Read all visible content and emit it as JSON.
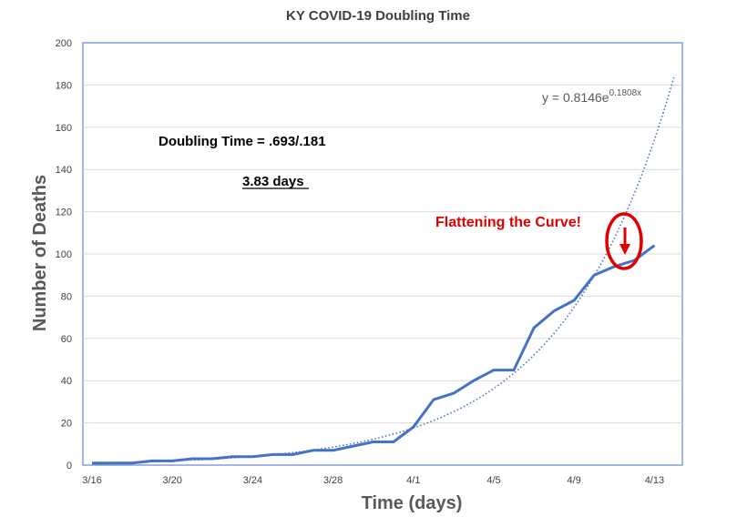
{
  "chart_data": {
    "type": "line",
    "title": "KY COVID-19 Doubling Time",
    "xlabel": "Time (days)",
    "ylabel": "Number of Deaths",
    "ylim": [
      0,
      200
    ],
    "yticks": [
      0,
      20,
      40,
      60,
      80,
      100,
      120,
      140,
      160,
      180,
      200
    ],
    "xticks": [
      "3/16",
      "3/20",
      "3/24",
      "3/28",
      "4/1",
      "4/5",
      "4/9",
      "4/13"
    ],
    "x": [
      "3/16",
      "3/17",
      "3/18",
      "3/19",
      "3/20",
      "3/21",
      "3/22",
      "3/23",
      "3/24",
      "3/25",
      "3/26",
      "3/27",
      "3/28",
      "3/29",
      "3/30",
      "3/31",
      "4/1",
      "4/2",
      "4/3",
      "4/4",
      "4/5",
      "4/6",
      "4/7",
      "4/8",
      "4/9",
      "4/10",
      "4/11",
      "4/12",
      "4/13"
    ],
    "series": [
      {
        "values": [
          1,
          1,
          1,
          2,
          2,
          3,
          3,
          4,
          4,
          5,
          5,
          7,
          7,
          9,
          11,
          11,
          18,
          31,
          34,
          40,
          45,
          45,
          65,
          73,
          78,
          90,
          94,
          97,
          104
        ],
        "color": "#4472c4"
      }
    ],
    "trendline": {
      "type": "exponential",
      "equation_base": "y = 0.8146e",
      "equation_exp": "0.1808x",
      "a": 0.8146,
      "b": 0.1808,
      "color": "#4472c4",
      "style": "dotted"
    },
    "grid": "horizontal"
  },
  "annotations": {
    "doubling_formula": "Doubling Time = .693/.181",
    "doubling_days": "3.83 days",
    "flattening": "Flattening the Curve!",
    "accent_color": "#e00000"
  }
}
